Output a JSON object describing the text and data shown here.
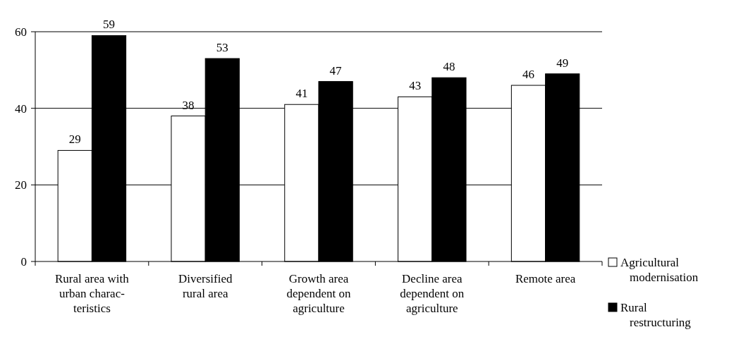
{
  "chart_data": {
    "type": "bar",
    "categories": [
      "Rural area with\nurban charac-\nteristics",
      "Diversified\nrural area",
      "Growth area\ndependent on\nagriculture",
      "Decline area\ndependent on\nagriculture",
      "Remote area"
    ],
    "series": [
      {
        "name": "Agricultural\nmodernisation",
        "color": "#ffffff",
        "values": [
          29,
          38,
          41,
          43,
          46
        ]
      },
      {
        "name": "Rural\nrestructuring",
        "color": "#000000",
        "values": [
          59,
          53,
          47,
          48,
          49
        ]
      }
    ],
    "ylim": [
      0,
      60
    ],
    "yticks": [
      0,
      20,
      40,
      60
    ],
    "grid": "y",
    "legend": "right",
    "data_labels": true
  }
}
